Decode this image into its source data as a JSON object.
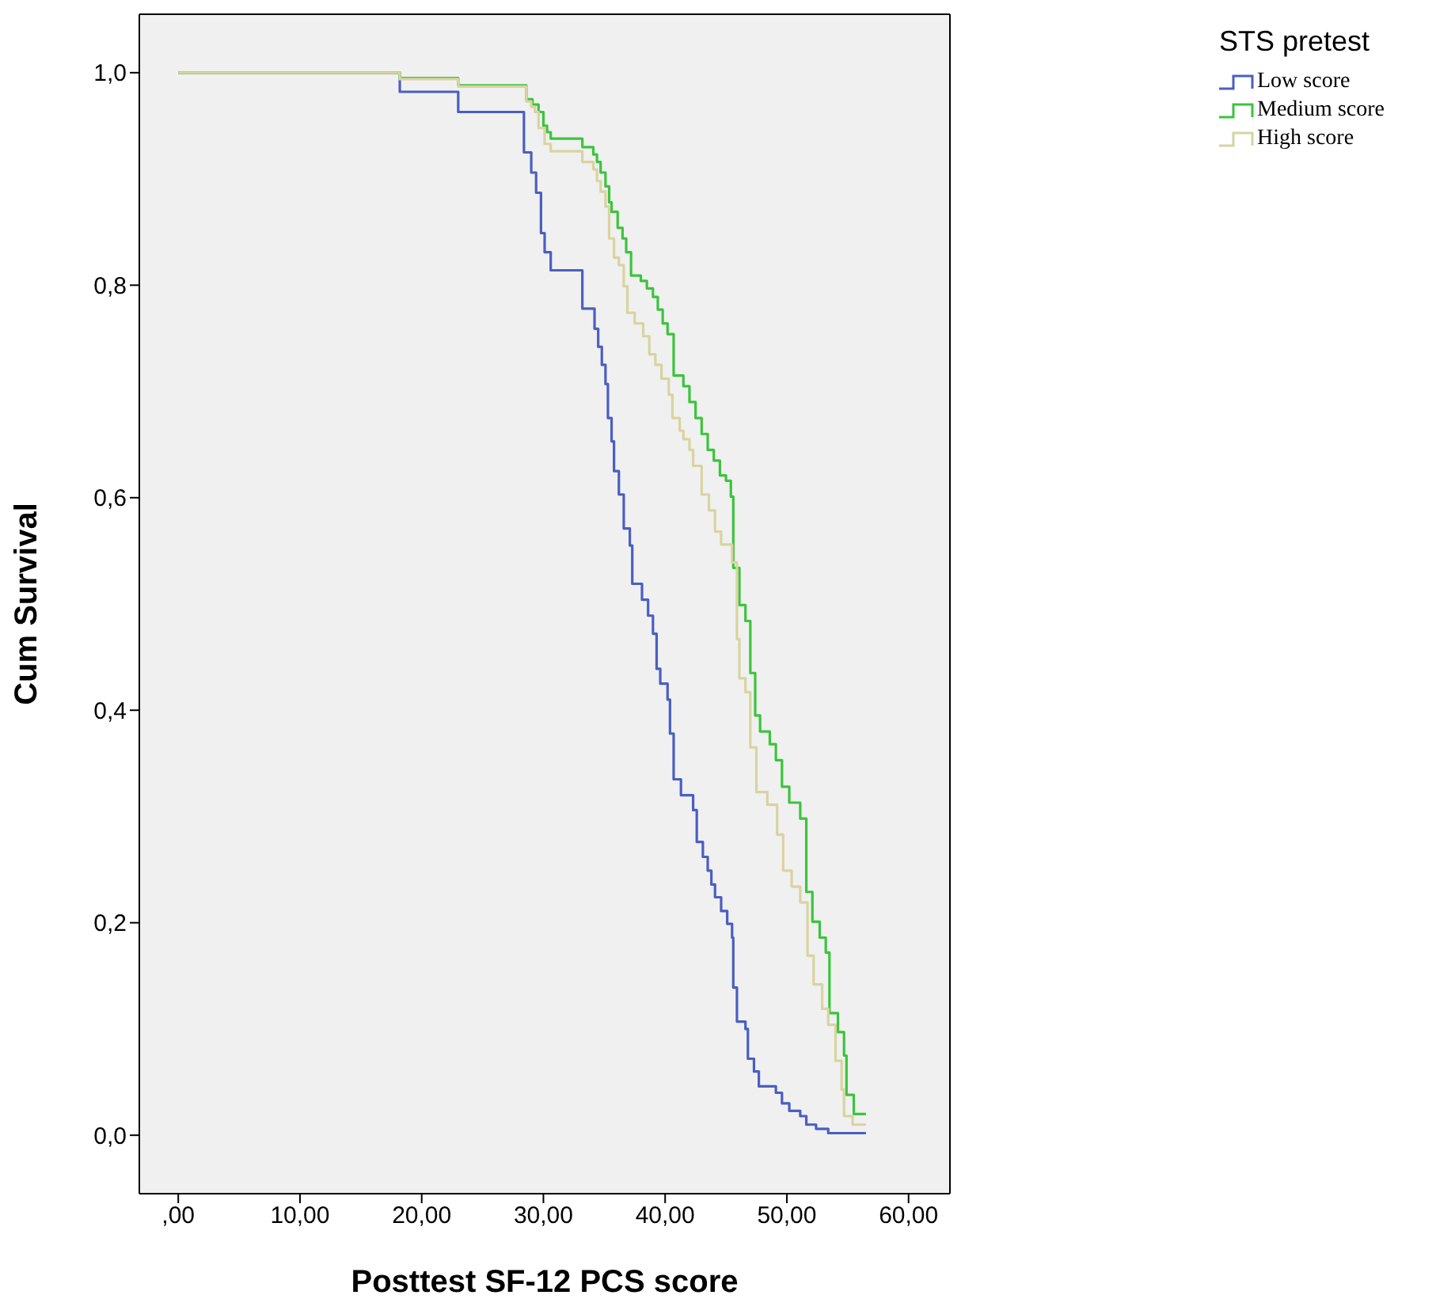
{
  "chart_data": {
    "type": "step",
    "xlabel": "Posttest SF-12 PCS score",
    "ylabel": "Cum Survival",
    "legend_title": "STS pretest",
    "legend": "top right",
    "grid": false,
    "marker": "none",
    "line_style": "solid",
    "xlim": [
      -3.2,
      63.4
    ],
    "ylim": [
      -0.055,
      1.055
    ],
    "xticks": [
      {
        "value": 0,
        "label": ",00"
      },
      {
        "value": 10,
        "label": "10,00"
      },
      {
        "value": 20,
        "label": "20,00"
      },
      {
        "value": 30,
        "label": "30,00"
      },
      {
        "value": 40,
        "label": "40,00"
      },
      {
        "value": 50,
        "label": "50,00"
      },
      {
        "value": 60,
        "label": "60,00"
      }
    ],
    "yticks": [
      {
        "value": 0,
        "label": "0,0"
      },
      {
        "value": 0.2,
        "label": "0,2"
      },
      {
        "value": 0.4,
        "label": "0,4"
      },
      {
        "value": 0.6,
        "label": "0,6"
      },
      {
        "value": 0.8,
        "label": "0,8"
      },
      {
        "value": 1,
        "label": "1,0"
      }
    ],
    "series": [
      {
        "name": "Low score",
        "color": "#4a5fc1",
        "x": [
          0,
          18.2,
          23.0,
          28.4,
          29.0,
          29.4,
          29.8,
          30.1,
          30.6,
          33.2,
          34.2,
          34.5,
          34.8,
          35.1,
          35.3,
          35.6,
          35.8,
          36.2,
          36.6,
          37.1,
          37.3,
          38.1,
          38.6,
          39.0,
          39.3,
          39.6,
          40.2,
          40.4,
          40.7,
          41.3,
          42.3,
          42.6,
          43.1,
          43.5,
          43.8,
          44.1,
          44.6,
          45.1,
          45.5,
          45.6,
          45.9,
          46.6,
          46.8,
          47.3,
          47.7,
          49.1,
          49.6,
          50.2,
          51.1,
          51.6,
          52.4,
          53.4,
          56.5
        ],
        "values": [
          1.0,
          0.982,
          0.963,
          0.925,
          0.906,
          0.887,
          0.849,
          0.831,
          0.814,
          0.778,
          0.759,
          0.742,
          0.725,
          0.707,
          0.675,
          0.653,
          0.625,
          0.603,
          0.571,
          0.555,
          0.519,
          0.504,
          0.489,
          0.472,
          0.439,
          0.425,
          0.41,
          0.378,
          0.335,
          0.32,
          0.306,
          0.276,
          0.262,
          0.249,
          0.236,
          0.224,
          0.211,
          0.199,
          0.186,
          0.139,
          0.107,
          0.1,
          0.072,
          0.06,
          0.046,
          0.04,
          0.03,
          0.023,
          0.018,
          0.01,
          0.006,
          0.002,
          0.002
        ]
      },
      {
        "name": "Medium score",
        "color": "#3cc43c",
        "x": [
          0,
          18.2,
          23.0,
          28.6,
          29.1,
          29.6,
          30.0,
          30.3,
          30.6,
          33.2,
          34.1,
          34.4,
          34.7,
          35.1,
          35.4,
          35.6,
          36.1,
          36.5,
          36.8,
          37.2,
          38.0,
          38.5,
          39.0,
          39.4,
          39.8,
          40.2,
          40.7,
          41.5,
          42.0,
          42.5,
          43.0,
          43.5,
          44.0,
          44.5,
          45.0,
          45.4,
          45.6,
          46.1,
          46.6,
          47.0,
          47.4,
          47.8,
          48.6,
          49.1,
          49.6,
          50.2,
          51.1,
          51.6,
          52.1,
          52.7,
          53.2,
          53.5,
          54.2,
          54.7,
          54.9,
          55.5,
          56.5
        ],
        "values": [
          1.0,
          0.995,
          0.988,
          0.975,
          0.97,
          0.963,
          0.95,
          0.944,
          0.938,
          0.93,
          0.923,
          0.916,
          0.906,
          0.893,
          0.878,
          0.869,
          0.854,
          0.844,
          0.831,
          0.809,
          0.804,
          0.797,
          0.789,
          0.777,
          0.764,
          0.754,
          0.715,
          0.705,
          0.69,
          0.675,
          0.66,
          0.645,
          0.635,
          0.621,
          0.616,
          0.601,
          0.534,
          0.499,
          0.484,
          0.435,
          0.395,
          0.38,
          0.368,
          0.353,
          0.328,
          0.313,
          0.298,
          0.229,
          0.201,
          0.186,
          0.172,
          0.115,
          0.097,
          0.075,
          0.038,
          0.02,
          0.02
        ]
      },
      {
        "name": "High score",
        "color": "#d8d4a0",
        "x": [
          0,
          18.2,
          23.0,
          28.6,
          29.0,
          29.3,
          29.6,
          30.1,
          30.6,
          33.2,
          34.1,
          34.4,
          34.7,
          35.1,
          35.4,
          35.8,
          36.2,
          36.6,
          36.9,
          37.5,
          38.2,
          38.7,
          39.2,
          39.7,
          40.3,
          40.6,
          41.2,
          41.5,
          42.0,
          42.3,
          43.0,
          43.6,
          44.1,
          44.6,
          45.5,
          45.9,
          46.1,
          46.6,
          47.0,
          47.5,
          48.4,
          49.2,
          49.7,
          50.4,
          51.1,
          51.7,
          52.2,
          52.9,
          53.4,
          54.0,
          54.5,
          54.7,
          55.4,
          56.5
        ],
        "values": [
          1.0,
          0.994,
          0.987,
          0.973,
          0.968,
          0.963,
          0.948,
          0.933,
          0.926,
          0.916,
          0.909,
          0.898,
          0.888,
          0.874,
          0.844,
          0.826,
          0.819,
          0.799,
          0.774,
          0.764,
          0.752,
          0.735,
          0.725,
          0.712,
          0.697,
          0.675,
          0.663,
          0.655,
          0.645,
          0.63,
          0.603,
          0.588,
          0.568,
          0.556,
          0.539,
          0.467,
          0.43,
          0.417,
          0.365,
          0.323,
          0.311,
          0.283,
          0.249,
          0.234,
          0.219,
          0.169,
          0.142,
          0.119,
          0.104,
          0.07,
          0.043,
          0.018,
          0.01,
          0.01
        ]
      }
    ]
  }
}
